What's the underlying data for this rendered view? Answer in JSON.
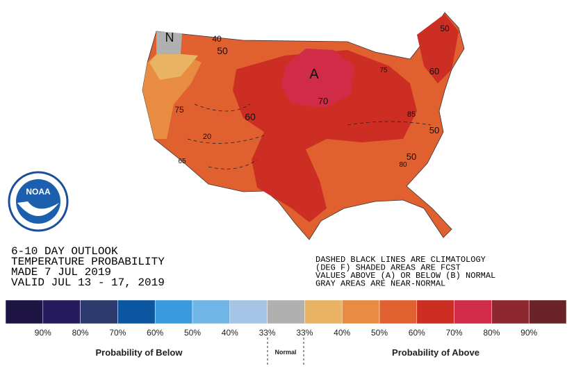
{
  "header": {
    "lines": [
      "6-10 DAY OUTLOOK",
      "TEMPERATURE PROBABILITY",
      "MADE  7 JUL 2019",
      "VALID  JUL 13 - 17, 2019"
    ]
  },
  "note": {
    "lines": [
      "DASHED BLACK LINES ARE CLIMATOLOGY",
      "(DEG F) SHADED AREAS ARE FCST",
      "VALUES ABOVE (A) OR BELOW (B) NORMAL",
      "GRAY AREAS ARE NEAR-NORMAL"
    ]
  },
  "logo": {
    "label": "NOAA"
  },
  "map": {
    "labels": [
      "A",
      "N",
      "40",
      "50",
      "75",
      "60",
      "70",
      "20",
      "65",
      "50",
      "60",
      "85",
      "50",
      "50",
      "80",
      "75"
    ]
  },
  "legend": {
    "colors": [
      "#1e1545",
      "#241a5c",
      "#2c3a6e",
      "#0b56a0",
      "#3a9ae0",
      "#6fb5e6",
      "#a5c4e6",
      "#b0b0b0",
      "#e8b464",
      "#e88c42",
      "#e06030",
      "#cc2e24",
      "#d02c48",
      "#8e2830",
      "#6a2428"
    ],
    "labels": [
      "90%",
      "80%",
      "70%",
      "60%",
      "50%",
      "40%",
      "33%",
      "33%",
      "40%",
      "50%",
      "60%",
      "70%",
      "80%",
      "90%"
    ],
    "below": "Probability of Below",
    "normal": "Normal",
    "above": "Probability of Above"
  }
}
